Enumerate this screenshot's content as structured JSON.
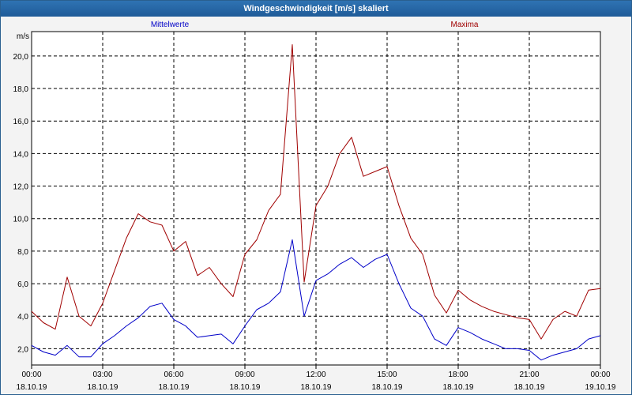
{
  "window": {
    "title": "Windgeschwindigkeit [m/s] skaliert"
  },
  "chart_data": {
    "type": "line",
    "title": "Windgeschwindigkeit [m/s] skaliert",
    "ylabel": "m/s",
    "xlabel": "",
    "ylim": [
      1.0,
      21.5
    ],
    "grid": true,
    "legend_placement": "top",
    "y_ticks": [
      "2,0",
      "4,0",
      "6,0",
      "8,0",
      "10,0",
      "12,0",
      "14,0",
      "16,0",
      "18,0",
      "20,0"
    ],
    "x_tick_labels": [
      {
        "time": "00:00",
        "date": "18.10.19"
      },
      {
        "time": "03:00",
        "date": "18.10.19"
      },
      {
        "time": "06:00",
        "date": "18.10.19"
      },
      {
        "time": "09:00",
        "date": "18.10.19"
      },
      {
        "time": "12:00",
        "date": "18.10.19"
      },
      {
        "time": "15:00",
        "date": "18.10.19"
      },
      {
        "time": "18:00",
        "date": "18.10.19"
      },
      {
        "time": "21:00",
        "date": "18.10.19"
      },
      {
        "time": "00:00",
        "date": "19.10.19"
      }
    ],
    "series": [
      {
        "name": "Mittelwerte",
        "color": "#0000c8",
        "points": [
          [
            0.0,
            2.2
          ],
          [
            0.5,
            1.8
          ],
          [
            1.0,
            1.6
          ],
          [
            1.5,
            2.2
          ],
          [
            2.0,
            1.5
          ],
          [
            2.5,
            1.5
          ],
          [
            3.0,
            2.3
          ],
          [
            3.5,
            2.8
          ],
          [
            4.0,
            3.4
          ],
          [
            4.5,
            3.9
          ],
          [
            5.0,
            4.6
          ],
          [
            5.5,
            4.8
          ],
          [
            6.0,
            3.8
          ],
          [
            6.5,
            3.4
          ],
          [
            7.0,
            2.7
          ],
          [
            7.5,
            2.8
          ],
          [
            8.0,
            2.9
          ],
          [
            8.5,
            2.3
          ],
          [
            9.0,
            3.4
          ],
          [
            9.5,
            4.4
          ],
          [
            10.0,
            4.8
          ],
          [
            10.5,
            5.5
          ],
          [
            11.0,
            8.7
          ],
          [
            11.5,
            4.0
          ],
          [
            12.0,
            6.2
          ],
          [
            12.5,
            6.6
          ],
          [
            13.0,
            7.2
          ],
          [
            13.5,
            7.6
          ],
          [
            14.0,
            7.0
          ],
          [
            14.5,
            7.5
          ],
          [
            15.0,
            7.8
          ],
          [
            15.5,
            6.0
          ],
          [
            16.0,
            4.5
          ],
          [
            16.5,
            4.0
          ],
          [
            17.0,
            2.6
          ],
          [
            17.5,
            2.2
          ],
          [
            18.0,
            3.3
          ],
          [
            18.5,
            3.0
          ],
          [
            19.0,
            2.6
          ],
          [
            19.5,
            2.3
          ],
          [
            20.0,
            2.0
          ],
          [
            20.5,
            2.0
          ],
          [
            21.0,
            1.9
          ],
          [
            21.5,
            1.3
          ],
          [
            22.0,
            1.6
          ],
          [
            22.5,
            1.8
          ],
          [
            23.0,
            2.0
          ],
          [
            23.5,
            2.6
          ],
          [
            24.0,
            2.8
          ]
        ]
      },
      {
        "name": "Maxima",
        "color": "#a00000",
        "points": [
          [
            0.0,
            4.3
          ],
          [
            0.5,
            3.6
          ],
          [
            1.0,
            3.2
          ],
          [
            1.5,
            6.4
          ],
          [
            2.0,
            4.0
          ],
          [
            2.5,
            3.4
          ],
          [
            3.0,
            4.8
          ],
          [
            3.5,
            6.8
          ],
          [
            4.0,
            8.8
          ],
          [
            4.5,
            10.3
          ],
          [
            5.0,
            9.8
          ],
          [
            5.5,
            9.6
          ],
          [
            6.0,
            8.0
          ],
          [
            6.5,
            8.6
          ],
          [
            7.0,
            6.5
          ],
          [
            7.5,
            7.0
          ],
          [
            8.0,
            6.0
          ],
          [
            8.5,
            5.2
          ],
          [
            9.0,
            7.8
          ],
          [
            9.5,
            8.7
          ],
          [
            10.0,
            10.5
          ],
          [
            10.5,
            11.5
          ],
          [
            11.0,
            20.7
          ],
          [
            11.5,
            6.1
          ],
          [
            12.0,
            10.8
          ],
          [
            12.5,
            12.0
          ],
          [
            13.0,
            14.0
          ],
          [
            13.5,
            15.0
          ],
          [
            14.0,
            12.6
          ],
          [
            14.5,
            12.9
          ],
          [
            15.0,
            13.2
          ],
          [
            15.5,
            10.8
          ],
          [
            16.0,
            8.8
          ],
          [
            16.5,
            7.8
          ],
          [
            17.0,
            5.3
          ],
          [
            17.5,
            4.2
          ],
          [
            18.0,
            5.6
          ],
          [
            18.5,
            5.0
          ],
          [
            19.0,
            4.6
          ],
          [
            19.5,
            4.3
          ],
          [
            20.0,
            4.1
          ],
          [
            20.5,
            3.9
          ],
          [
            21.0,
            3.8
          ],
          [
            21.5,
            2.6
          ],
          [
            22.0,
            3.8
          ],
          [
            22.5,
            4.3
          ],
          [
            23.0,
            4.0
          ],
          [
            23.5,
            5.6
          ],
          [
            24.0,
            5.7
          ]
        ]
      }
    ]
  }
}
